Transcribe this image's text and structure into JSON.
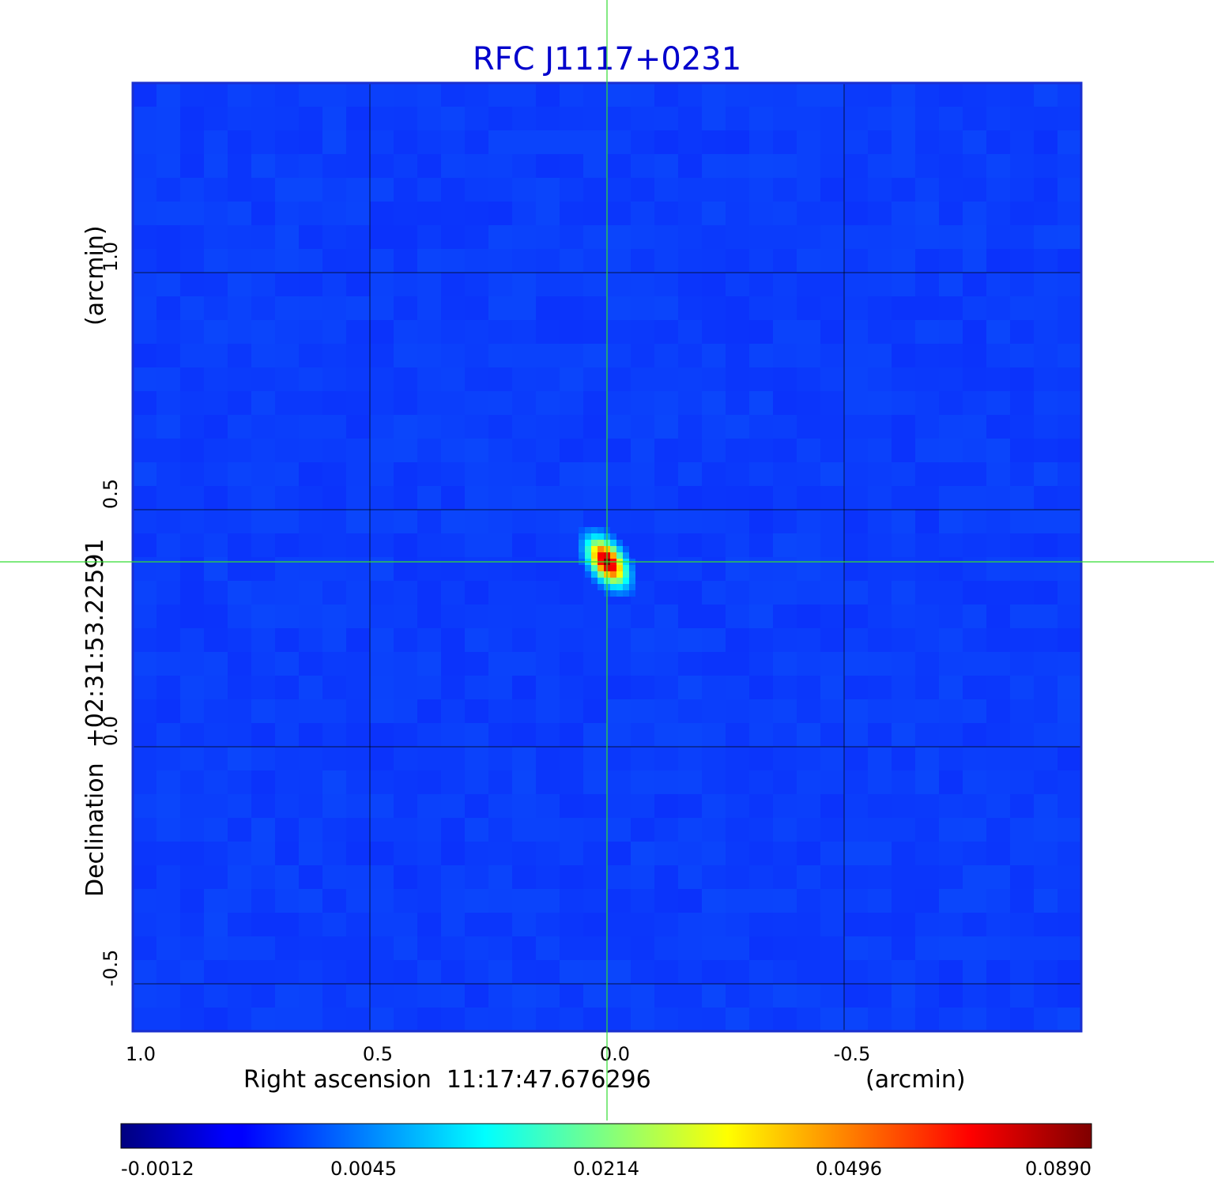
{
  "chart_data": {
    "type": "heatmap",
    "title": "RFC J1117+0231",
    "title_color": "#0000cc",
    "xlabel": "Right ascension  11:17:47.676296",
    "xlabel_unit": "(arcmin)",
    "ylabel": "Declination  +02:31:53.22591",
    "ylabel_unit": "(arcmin)",
    "xlim": [
      1.0,
      -1.0
    ],
    "ylim": [
      -0.6,
      1.4
    ],
    "x_ticks": [
      1.0,
      0.5,
      0.0,
      -0.5
    ],
    "x_tick_labels": [
      "1.0",
      "0.5",
      "0.0",
      "-0.5"
    ],
    "y_ticks": [
      -0.5,
      0.0,
      0.5,
      1.0
    ],
    "y_tick_labels": [
      "-0.5",
      "0.0",
      "0.5",
      "1.0"
    ],
    "grid": true,
    "crosshair": {
      "x": 0.0,
      "y": 0.39,
      "color": "#33dd33"
    },
    "source": {
      "x": 0.0,
      "y": 0.39,
      "peak": 0.089,
      "sigma_major": 0.035,
      "sigma_minor": 0.02,
      "position_angle_deg": 35
    },
    "background_level": 0.0012,
    "colorbar": {
      "tick_labels": [
        "-0.0012",
        "0.0045",
        "0.0214",
        "0.0496",
        "0.0890"
      ],
      "colormap": "jet"
    }
  }
}
